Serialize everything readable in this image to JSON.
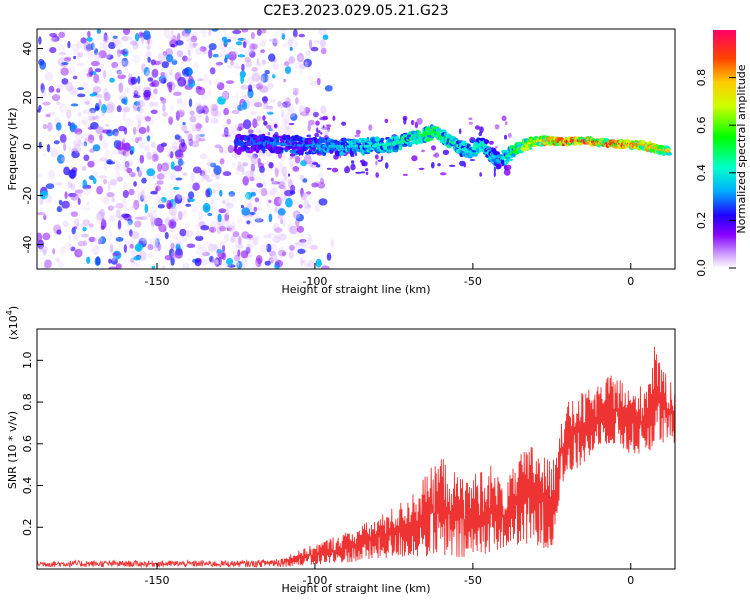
{
  "title": "C2E3.2023.029.05.21.G23",
  "colors": {
    "snr_line": "#ee3333",
    "axis": "#000000",
    "background": "#ffffff"
  },
  "chart_data": [
    {
      "type": "heatmap",
      "xlabel": "Height of straight line (km)",
      "ylabel": "Frequency (Hz)",
      "xlim": [
        -188,
        14
      ],
      "ylim": [
        -50,
        48
      ],
      "x_ticks": [
        -150,
        -100,
        -50,
        0
      ],
      "x_tick_labels": [
        "-150",
        "-100",
        "-50",
        "0"
      ],
      "y_ticks": [
        -40,
        -20,
        0,
        20,
        40
      ],
      "y_tick_labels": [
        "-40",
        "-20",
        "0",
        "20",
        "40"
      ],
      "colorbar": {
        "label": "Normalized spectral amplitude",
        "range": [
          0,
          1
        ],
        "ticks": [
          0,
          0.2,
          0.4,
          0.6,
          0.8
        ],
        "tick_labels": [
          "0.0",
          "0.2",
          "0.4",
          "0.6",
          "0.8"
        ],
        "colormap": [
          "#ffffff",
          "#cc99ff",
          "#8800ff",
          "#2200ff",
          "#00aaff",
          "#00ffcc",
          "#00ff00",
          "#ccff00",
          "#ffcc00",
          "#ff4400",
          "#ff0066"
        ]
      },
      "ridge": {
        "x": [
          -125,
          -115,
          -105,
          -95,
          -85,
          -75,
          -68,
          -62,
          -58,
          -52,
          -47,
          -42,
          -38,
          -33,
          -28,
          -22,
          -15,
          -8,
          -2,
          4,
          12
        ],
        "frequency": [
          1,
          1.5,
          0.5,
          0,
          0,
          1,
          4,
          6,
          3,
          -2,
          1,
          -6,
          -3,
          1,
          2.5,
          2,
          2.5,
          1.5,
          1,
          0.5,
          -2
        ],
        "amplitude": [
          0.25,
          0.3,
          0.3,
          0.35,
          0.4,
          0.45,
          0.5,
          0.55,
          0.5,
          0.4,
          0.45,
          0.35,
          0.5,
          0.7,
          0.8,
          0.9,
          0.95,
          0.9,
          0.9,
          0.8,
          0.8
        ]
      },
      "noise_region": {
        "x_range": [
          -188,
          -100
        ],
        "frequency_range": [
          -50,
          48
        ],
        "amplitude_range": [
          0.02,
          0.35
        ]
      }
    },
    {
      "type": "line",
      "xlabel": "Height of straight line (km)",
      "ylabel": "SNR (10 * v/v)",
      "y_multiplier_label": "(x10",
      "y_multiplier_exponent": "4",
      "y_multiplier_close": ")",
      "xlim": [
        -188,
        14
      ],
      "ylim": [
        0,
        1.15
      ],
      "x_ticks": [
        -150,
        -100,
        -50,
        0
      ],
      "x_tick_labels": [
        "-150",
        "-100",
        "-50",
        "0"
      ],
      "y_ticks": [
        0.2,
        0.4,
        0.6,
        0.8,
        1.0
      ],
      "y_tick_labels": [
        "0.2",
        "0.4",
        "0.6",
        "0.8",
        "1.0"
      ],
      "series": [
        {
          "name": "",
          "envelope_x": [
            -188,
            -120,
            -110,
            -100,
            -90,
            -80,
            -70,
            -60,
            -55,
            -50,
            -45,
            -40,
            -35,
            -30,
            -25,
            -22,
            -20,
            -15,
            -10,
            -5,
            0,
            5,
            8,
            10,
            14
          ],
          "envelope_low": [
            0.01,
            0.01,
            0.01,
            0.02,
            0.03,
            0.05,
            0.06,
            0.06,
            0.05,
            0.05,
            0.08,
            0.1,
            0.12,
            0.1,
            0.1,
            0.4,
            0.45,
            0.5,
            0.6,
            0.6,
            0.55,
            0.55,
            0.6,
            0.6,
            0.6
          ],
          "envelope_high": [
            0.04,
            0.04,
            0.06,
            0.12,
            0.18,
            0.25,
            0.35,
            0.55,
            0.45,
            0.45,
            0.52,
            0.4,
            0.55,
            0.62,
            0.5,
            0.75,
            0.8,
            0.85,
            0.88,
            0.95,
            0.85,
            0.9,
            1.15,
            0.95,
            0.9
          ]
        }
      ]
    }
  ]
}
